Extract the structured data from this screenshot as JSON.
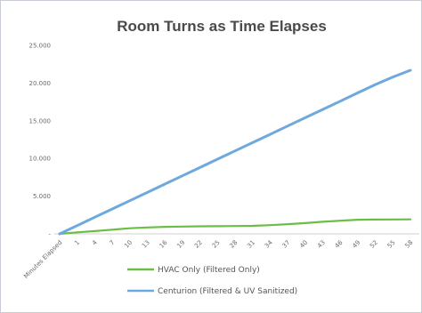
{
  "chart_data": {
    "type": "line",
    "title": "Room Turns as Time Elapses",
    "xlabel": "",
    "ylabel": "",
    "categories": [
      "Minutes Elapsed",
      "1",
      "4",
      "7",
      "10",
      "13",
      "16",
      "19",
      "22",
      "25",
      "28",
      "31",
      "34",
      "37",
      "40",
      "43",
      "46",
      "49",
      "52",
      "55",
      "58"
    ],
    "ylim": [
      0,
      25000
    ],
    "yticks": [
      0,
      5000,
      10000,
      15000,
      20000,
      25000
    ],
    "ytick_labels": [
      "-",
      "5.000",
      "10.000",
      "15.000",
      "20.000",
      "25.000"
    ],
    "grid": false,
    "legend_position": "bottom",
    "series": [
      {
        "name": "HVAC Only (Filtered Only)",
        "color": "#6cbd45",
        "values": [
          0,
          200,
          370,
          560,
          740,
          850,
          930,
          970,
          1000,
          1020,
          1040,
          1060,
          1150,
          1280,
          1430,
          1600,
          1750,
          1880,
          1900,
          1910,
          1920
        ]
      },
      {
        "name": "Centurion (Filtered & UV Sanitized)",
        "color": "#6fa8dc",
        "values": [
          0,
          1100,
          2200,
          3300,
          4400,
          5500,
          6600,
          7700,
          8800,
          9900,
          11000,
          12100,
          13200,
          14300,
          15400,
          16500,
          17600,
          18700,
          19800,
          20800,
          21700
        ]
      }
    ]
  }
}
